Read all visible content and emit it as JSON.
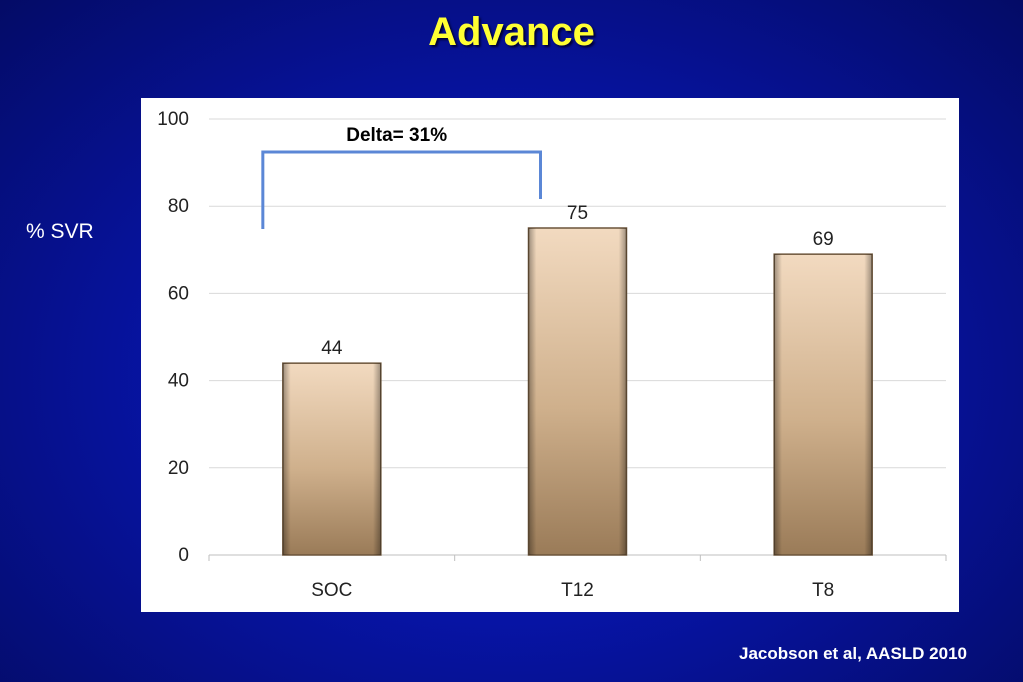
{
  "slide": {
    "title": "Advance",
    "y_axis_title": "% SVR",
    "citation": "Jacobson et al, AASLD 2010"
  },
  "annotation": {
    "text": "Delta= 31%",
    "from_category": "SOC",
    "to_category": "T12",
    "color": "#5b87d6"
  },
  "colors": {
    "background": "#0714a6",
    "title": "#ffff33",
    "bar_light": "#f0d6bb",
    "bar_dark": "#9a7b58"
  },
  "chart_data": {
    "type": "bar",
    "categories": [
      "SOC",
      "T12",
      "T8"
    ],
    "values": [
      44,
      75,
      69
    ],
    "data_labels": [
      "44",
      "75",
      "69"
    ],
    "ylabel": "% SVR",
    "ylim": [
      0,
      100
    ],
    "yticks": [
      0,
      20,
      40,
      60,
      80,
      100
    ],
    "grid": true,
    "legend": "none"
  }
}
